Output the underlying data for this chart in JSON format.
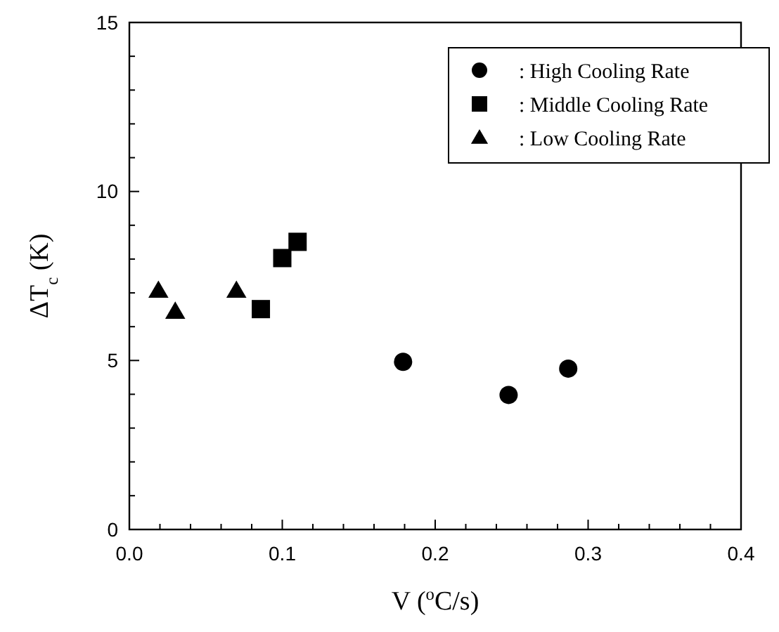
{
  "chart_data": {
    "type": "scatter",
    "xlabel": "V ($^{o}$C/s)",
    "ylabel": "ΔT$_{c}$ (K)",
    "xlim": [
      0,
      0.4
    ],
    "ylim": [
      0,
      15
    ],
    "xticks": [
      {
        "value": 0,
        "label": "0.0"
      },
      {
        "value": 0.02,
        "label": null
      },
      {
        "value": 0.04,
        "label": null
      },
      {
        "value": 0.06,
        "label": null
      },
      {
        "value": 0.08,
        "label": null
      },
      {
        "value": 0.1,
        "label": "0.1"
      },
      {
        "value": 0.12,
        "label": null
      },
      {
        "value": 0.14,
        "label": null
      },
      {
        "value": 0.16,
        "label": null
      },
      {
        "value": 0.18,
        "label": null
      },
      {
        "value": 0.2,
        "label": "0.2"
      },
      {
        "value": 0.22,
        "label": null
      },
      {
        "value": 0.24,
        "label": null
      },
      {
        "value": 0.26,
        "label": null
      },
      {
        "value": 0.28,
        "label": null
      },
      {
        "value": 0.3,
        "label": "0.3"
      },
      {
        "value": 0.32,
        "label": null
      },
      {
        "value": 0.34,
        "label": null
      },
      {
        "value": 0.36,
        "label": null
      },
      {
        "value": 0.38,
        "label": null
      },
      {
        "value": 0.4,
        "label": "0.4"
      }
    ],
    "yticks": [
      0,
      {
        "value": 1,
        "label": null
      },
      {
        "value": 2,
        "label": null
      },
      {
        "value": 3,
        "label": null
      },
      {
        "value": 4,
        "label": null
      },
      5,
      {
        "value": 6,
        "label": null
      },
      {
        "value": 7,
        "label": null
      },
      {
        "value": 8,
        "label": null
      },
      {
        "value": 9,
        "label": null
      },
      10,
      {
        "value": 11,
        "label": null
      },
      {
        "value": 12,
        "label": null
      },
      {
        "value": 13,
        "label": null
      },
      {
        "value": 14,
        "label": null
      },
      15
    ],
    "legend": "top right",
    "grid": false,
    "series": [
      {
        "name": ": High Cooling Rate",
        "color": "#000000",
        "marker": "circle",
        "x": [
          0.179,
          0.248,
          0.287
        ],
        "values": [
          4.96,
          3.98,
          4.76
        ]
      },
      {
        "name": ": Middle Cooling Rate",
        "color": "#000000",
        "marker": "square",
        "x": [
          0.086,
          0.1,
          0.11
        ],
        "values": [
          6.52,
          8.03,
          8.51
        ]
      },
      {
        "name": ": Low Cooling Rate",
        "color": "#000000",
        "marker": "triangle",
        "x": [
          0.019,
          0.03,
          0.07
        ],
        "values": [
          7.07,
          6.45,
          7.07
        ]
      }
    ]
  }
}
